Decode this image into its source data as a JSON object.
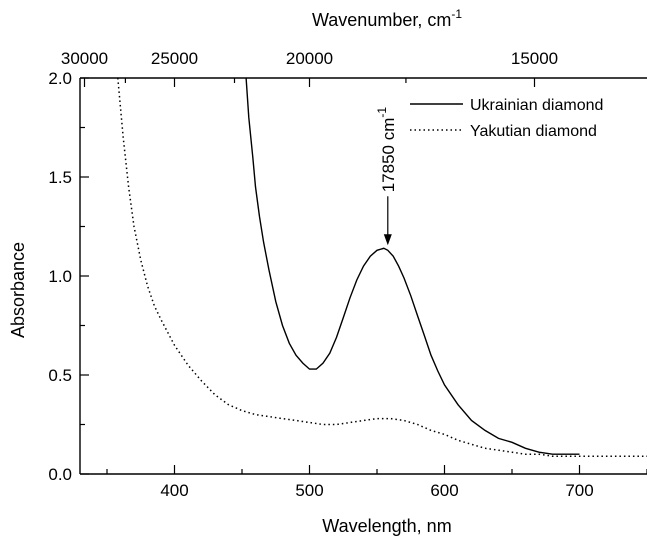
{
  "chart_data": {
    "type": "line",
    "xlabel": "Wavelength, nm",
    "x2label_main": "Wavenumber, cm",
    "x2label_sup": "-1",
    "ylabel": "Absorbance",
    "xlim": [
      330,
      750
    ],
    "ylim": [
      0.0,
      2.0
    ],
    "x_ticks": [
      400,
      500,
      600,
      700
    ],
    "x_tick_labels": [
      "400",
      "500",
      "600",
      "700"
    ],
    "y_ticks": [
      0.0,
      0.5,
      1.0,
      1.5,
      2.0
    ],
    "y_tick_labels": [
      "0.0",
      "0.5",
      "1.0",
      "1.5",
      "2.0"
    ],
    "x2_ticks": [
      30000,
      25000,
      20000,
      15000
    ],
    "x2_tick_labels": [
      "30000",
      "25000",
      "20000",
      "15000"
    ],
    "legend_position": "top-right",
    "series": [
      {
        "name": "Ukrainian diamond",
        "style": "solid",
        "x": [
          453,
          455,
          458,
          460,
          463,
          466,
          470,
          475,
          480,
          485,
          490,
          495,
          500,
          505,
          510,
          515,
          520,
          525,
          530,
          535,
          540,
          545,
          550,
          555,
          558,
          562,
          566,
          570,
          575,
          580,
          585,
          590,
          595,
          600,
          610,
          620,
          630,
          640,
          650,
          660,
          670,
          680,
          690,
          700
        ],
        "y": [
          2.0,
          1.8,
          1.6,
          1.45,
          1.3,
          1.17,
          1.03,
          0.87,
          0.75,
          0.66,
          0.6,
          0.56,
          0.53,
          0.53,
          0.56,
          0.61,
          0.69,
          0.79,
          0.89,
          0.98,
          1.05,
          1.1,
          1.13,
          1.14,
          1.13,
          1.1,
          1.05,
          0.99,
          0.9,
          0.8,
          0.7,
          0.6,
          0.52,
          0.45,
          0.35,
          0.27,
          0.22,
          0.18,
          0.16,
          0.13,
          0.11,
          0.1,
          0.1,
          0.1
        ]
      },
      {
        "name": "Yakutian diamond",
        "style": "dotted",
        "x": [
          358,
          362,
          366,
          370,
          375,
          380,
          385,
          390,
          400,
          410,
          420,
          430,
          440,
          450,
          460,
          470,
          480,
          490,
          500,
          510,
          520,
          530,
          540,
          550,
          560,
          570,
          580,
          590,
          600,
          610,
          620,
          630,
          640,
          650,
          660,
          670,
          680,
          690,
          700,
          720,
          750
        ],
        "y": [
          2.0,
          1.7,
          1.45,
          1.25,
          1.08,
          0.95,
          0.85,
          0.78,
          0.65,
          0.55,
          0.47,
          0.4,
          0.35,
          0.32,
          0.3,
          0.29,
          0.28,
          0.27,
          0.26,
          0.25,
          0.25,
          0.26,
          0.27,
          0.28,
          0.28,
          0.27,
          0.25,
          0.22,
          0.2,
          0.17,
          0.15,
          0.13,
          0.12,
          0.11,
          0.1,
          0.1,
          0.09,
          0.09,
          0.09,
          0.09,
          0.09
        ]
      }
    ],
    "annotations": [
      {
        "text_main": "17850 cm",
        "text_sup": "-1",
        "x": 558,
        "y": 1.14
      }
    ]
  }
}
